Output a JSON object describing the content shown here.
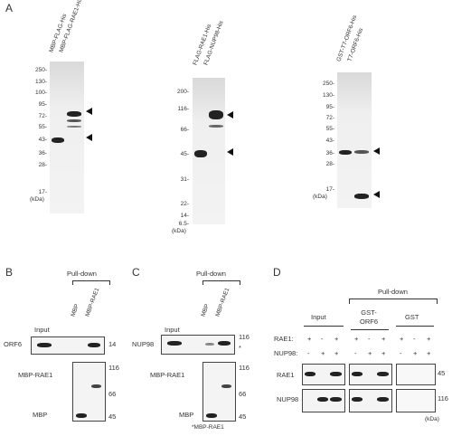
{
  "panels": {
    "A": "A",
    "B": "B",
    "C": "C",
    "D": "D"
  },
  "panelA": {
    "gel1": {
      "lanes": [
        "MBP-FLAG-His",
        "MBP-FLAG-RAE1-His"
      ],
      "markers": [
        "250-",
        "130-",
        "100-",
        "95-",
        "72-",
        "55-",
        "43-",
        "36-",
        "28-",
        "17-"
      ],
      "unit": "(kDa)"
    },
    "gel2": {
      "lanes": [
        "FLAG-RAE1-His",
        "FLAG-NUP98-His"
      ],
      "markers": [
        "200-",
        "116-",
        "66-",
        "45-",
        "31-",
        "22-",
        "14-",
        "6.5-"
      ],
      "unit": "(kDa)"
    },
    "gel3": {
      "lanes": [
        "GST-T7-ORF6-His",
        "T7-ORF6-His"
      ],
      "markers": [
        "250-",
        "130-",
        "95-",
        "72-",
        "55-",
        "43-",
        "36-",
        "28-",
        "17-"
      ],
      "unit": "(kDa)"
    }
  },
  "panelB": {
    "pulldown": "Pull-down",
    "lanes": [
      "MBP",
      "MBP-RAE1"
    ],
    "input": "Input",
    "rows": [
      "ORF6",
      "MBP-RAE1",
      "MBP"
    ],
    "markers": [
      "14",
      "116",
      "66",
      "45"
    ]
  },
  "panelC": {
    "pulldown": "Pull-down",
    "lanes": [
      "MBP",
      "MBP-RAE1"
    ],
    "input": "Input",
    "rows": [
      "NUP98",
      "MBP-RAE1",
      "MBP"
    ],
    "markers": [
      "116",
      "116",
      "66",
      "45"
    ],
    "asterisk": "*",
    "footnote": "*MBP-RAE1"
  },
  "panelD": {
    "pulldown": "Pull-down",
    "groups": [
      "Input",
      "GST-\nORF6",
      "GST"
    ],
    "row_labels": [
      "RAE1:",
      "NUP98:"
    ],
    "rae1_signs": [
      "+",
      "-",
      "+",
      "+",
      "-",
      "+",
      "+",
      "-",
      "+"
    ],
    "nup98_signs": [
      "-",
      "+",
      "+",
      "-",
      "+",
      "+",
      "-",
      "+",
      "+"
    ],
    "rows": [
      "RAE1",
      "NUP98"
    ],
    "markers": [
      "45",
      "116"
    ],
    "unit": "(kDa)"
  }
}
